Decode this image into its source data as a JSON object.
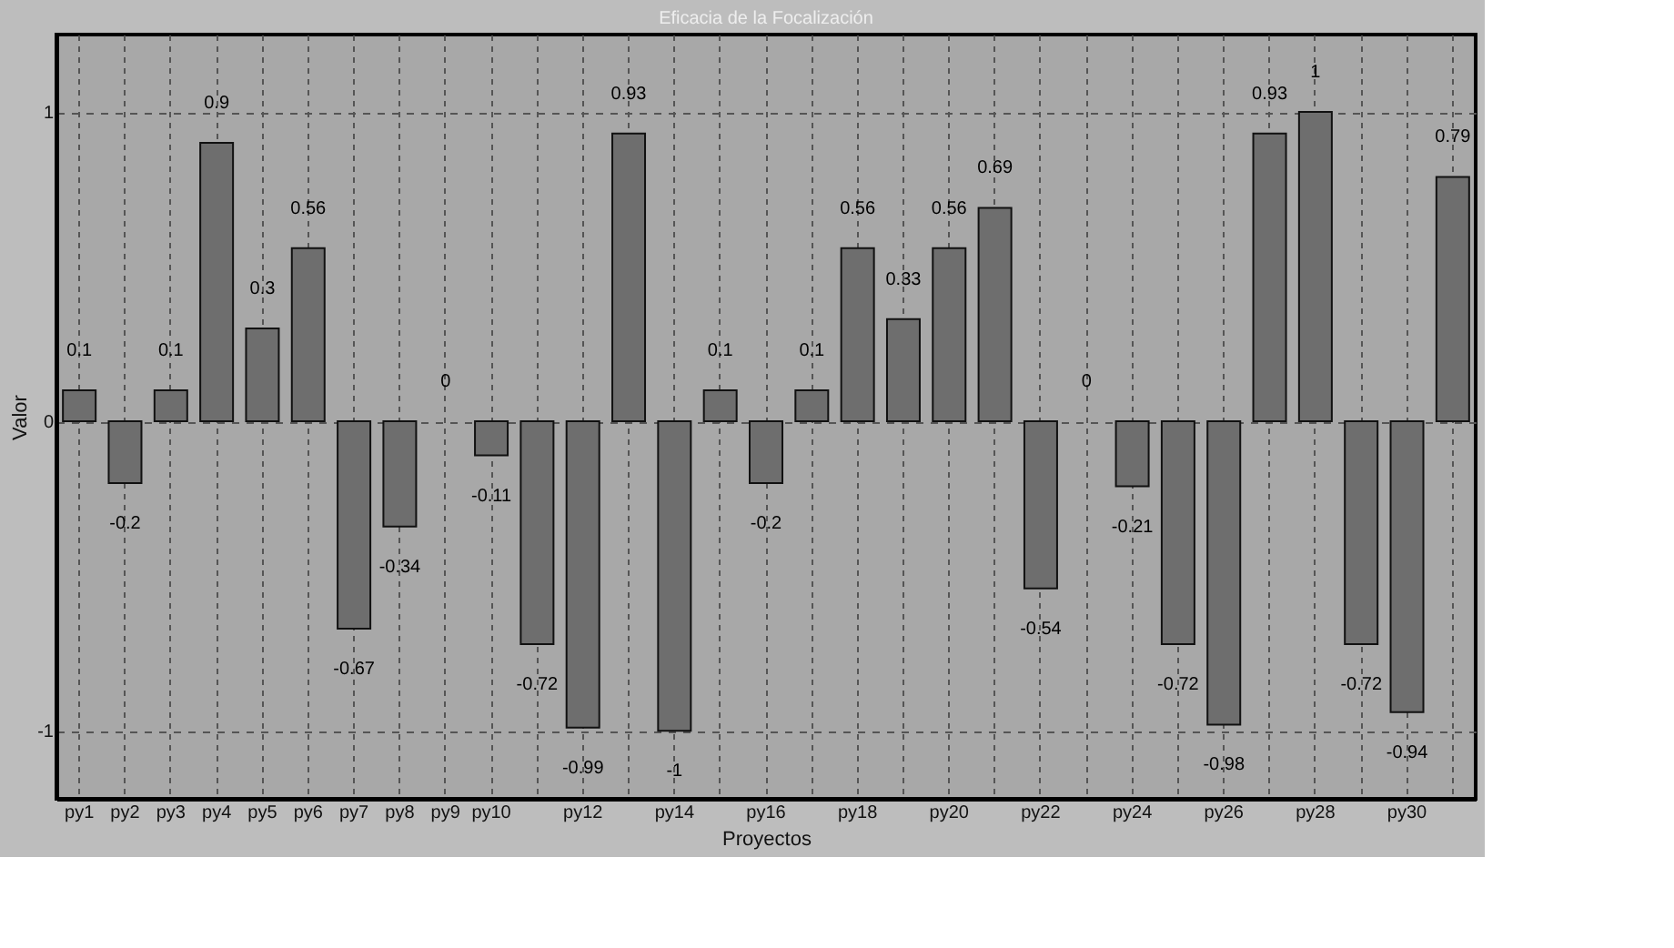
{
  "chart_data": {
    "type": "bar",
    "title": "Eficacia de la Focalización",
    "xlabel": "Proyectos",
    "ylabel": "Valor",
    "categories": [
      "py1",
      "py2",
      "py3",
      "py4",
      "py5",
      "py6",
      "py7",
      "py8",
      "py9",
      "py10",
      null,
      "py12",
      null,
      "py14",
      null,
      "py16",
      null,
      "py18",
      null,
      "py20",
      null,
      "py22",
      null,
      "py24",
      null,
      "py26",
      null,
      "py28",
      null,
      "py30",
      null
    ],
    "values": [
      0.1,
      -0.2,
      0.1,
      0.9,
      0.3,
      0.56,
      -0.67,
      -0.34,
      0,
      -0.11,
      -0.72,
      -0.99,
      0.93,
      -1,
      0.1,
      -0.2,
      0.1,
      0.56,
      0.33,
      0.56,
      0.69,
      -0.54,
      0,
      -0.21,
      -0.72,
      -0.98,
      0.93,
      1,
      -0.72,
      -0.94,
      0.79
    ],
    "color": "#6e6e6e",
    "ylim": [
      -1.22,
      1.25
    ],
    "yticks": [
      -1,
      0,
      1
    ],
    "grid": true,
    "data_labels": true
  }
}
